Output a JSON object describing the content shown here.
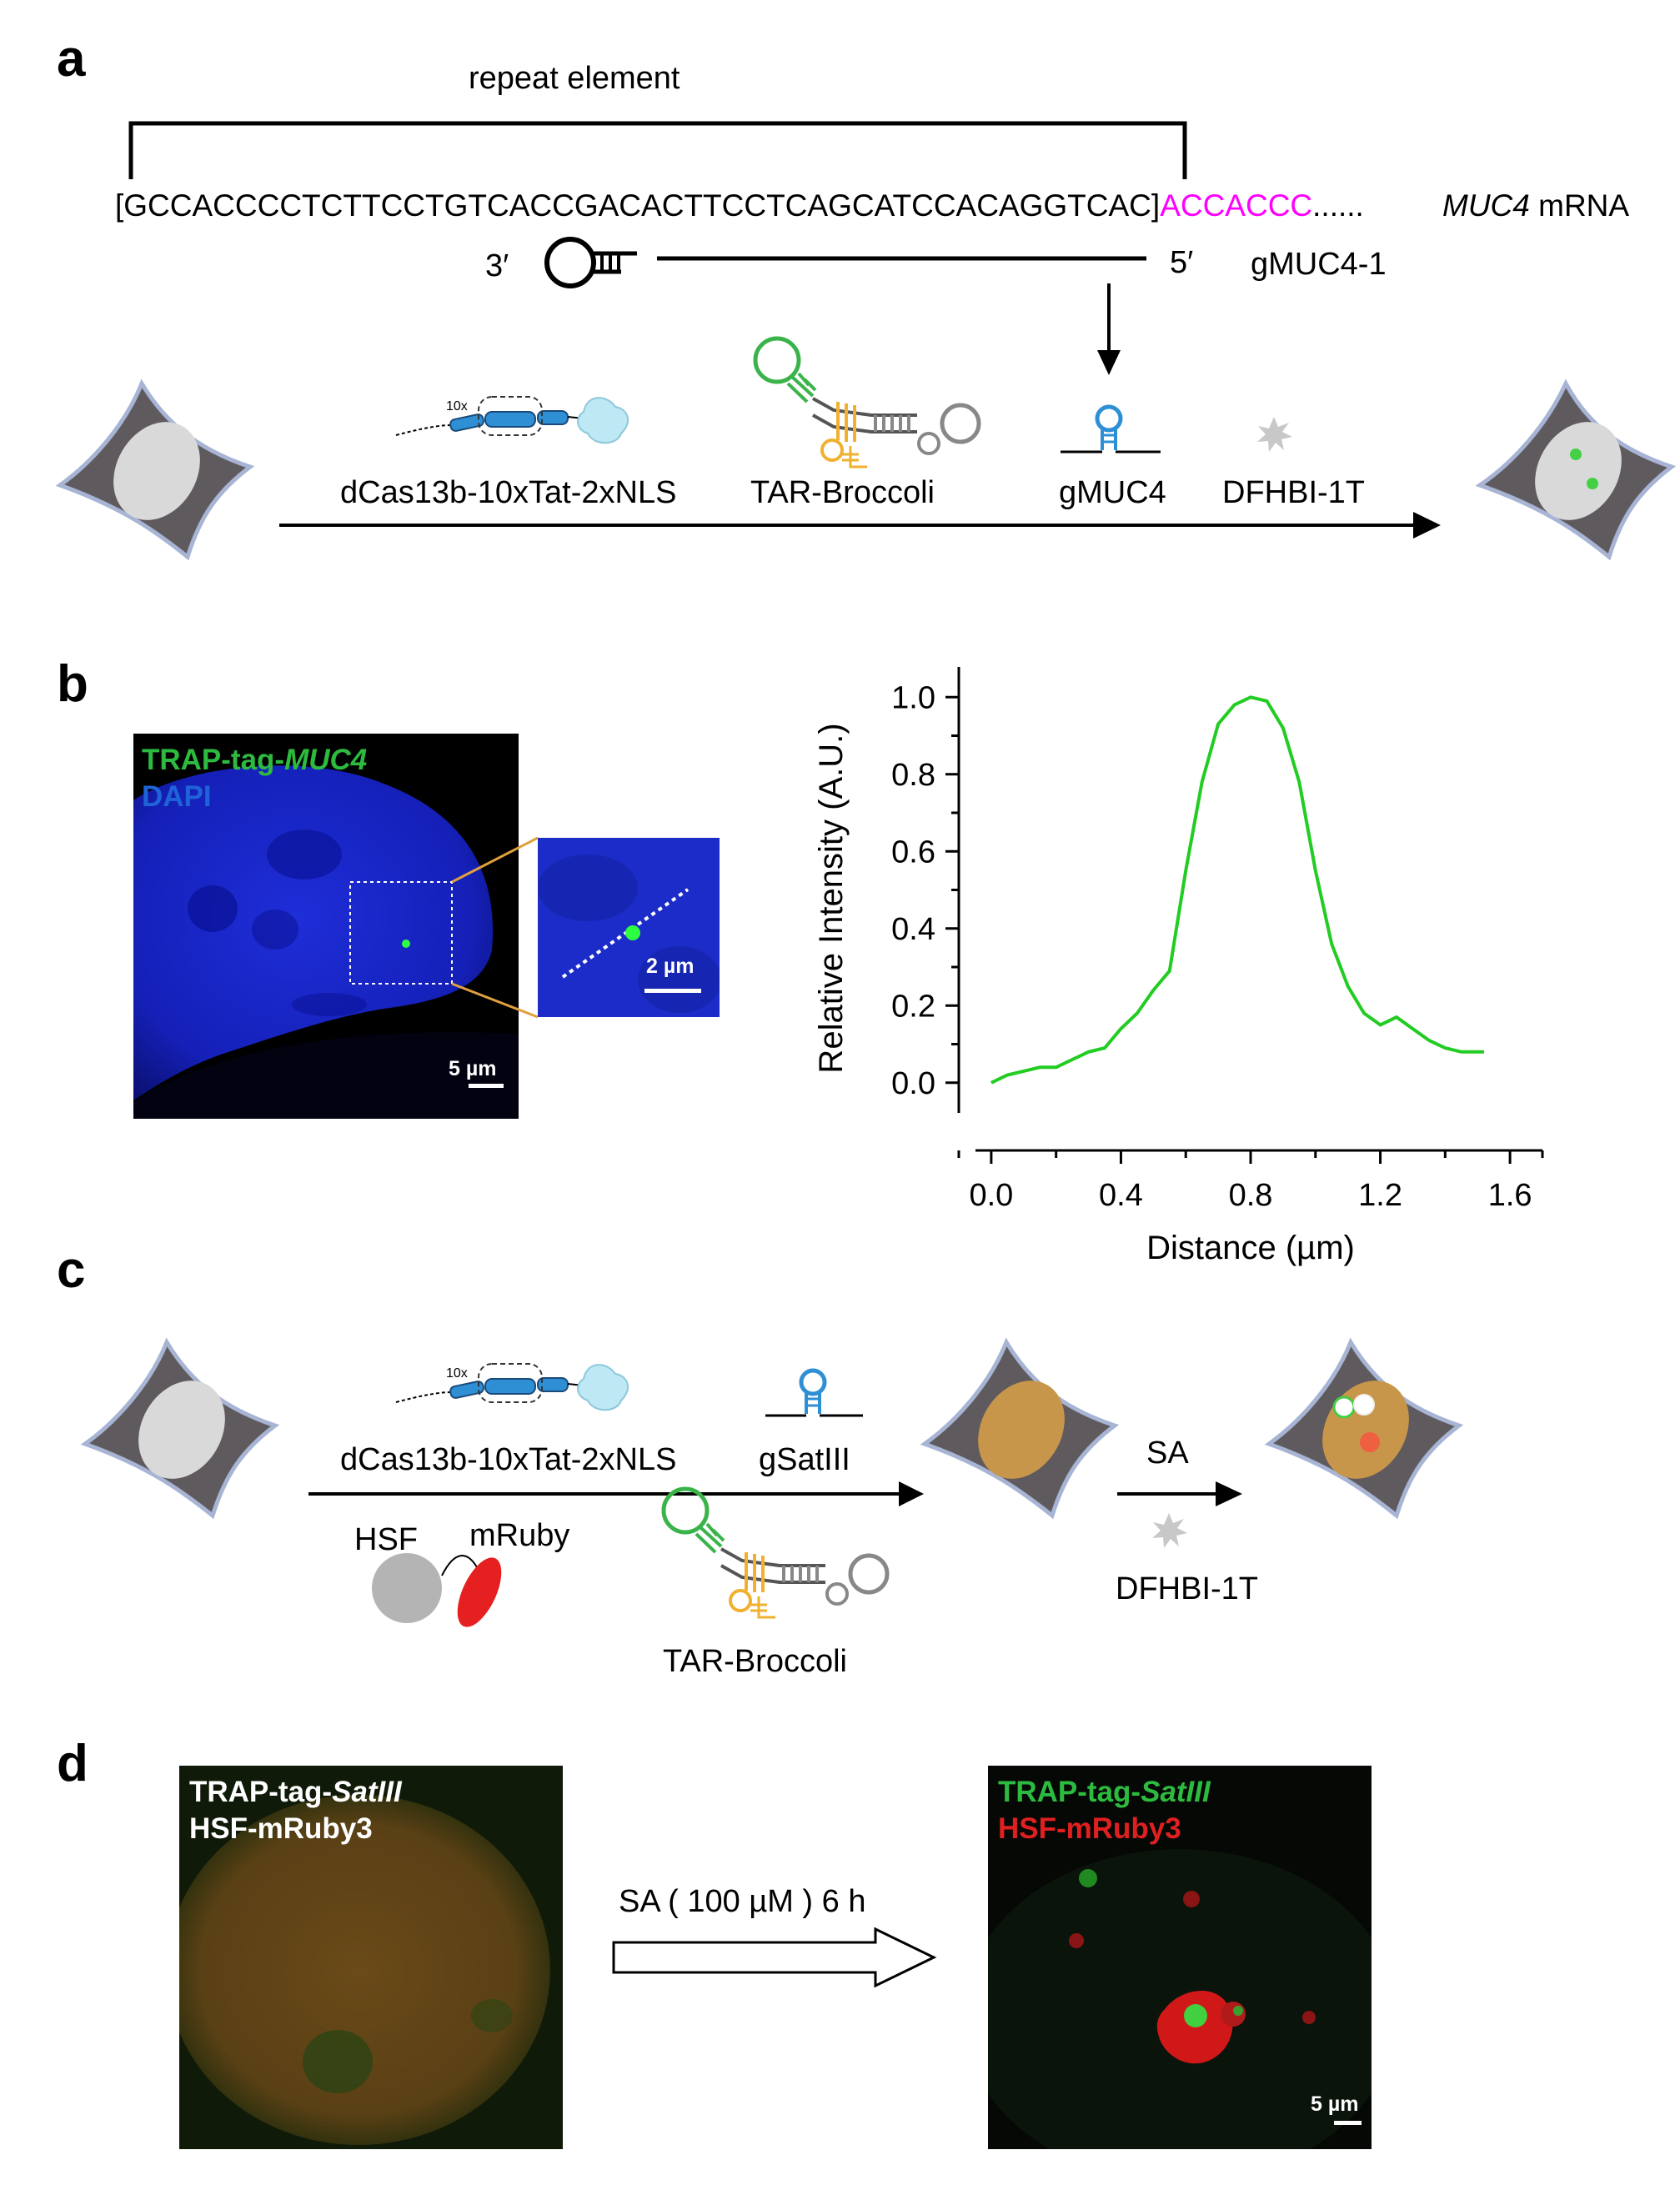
{
  "panel_a": {
    "label": "a",
    "repeat_label": "repeat element",
    "sequence_bracketed": "[GCCACCCCTCTTCCTGTCACCGACACTTCCTCAGCATCCACAGGTCAC]",
    "sequence_highlight": "ACCACCC",
    "sequence_ellipsis": "......",
    "mrna_gene": "MUC4",
    "mrna_suffix": " mRNA",
    "guide_3prime": "3′",
    "guide_5prime": "5′",
    "guide_name": "gMUC4-1",
    "components": {
      "dcas": "dCas13b-10xTat-2xNLS",
      "dcas_repeat": "10x",
      "tar": "TAR-Broccoli",
      "guide": "gMUC4",
      "dye": "DFHBI-1T"
    },
    "highlight_color": "#ff00ff"
  },
  "panel_b": {
    "label": "b",
    "image_label_green_prefix": "TRAP-tag-",
    "image_label_green_gene": "MUC4",
    "image_label_blue": "DAPI",
    "scale_main": "5 µm",
    "scale_inset": "2 µm",
    "chart_data": {
      "type": "line",
      "xlabel": "Distance (µm)",
      "ylabel": "Relative Intensity (A.U.)",
      "xlim": [
        -0.1,
        1.7
      ],
      "ylim": [
        -0.1,
        1.1
      ],
      "xticks": [
        0.0,
        0.4,
        0.8,
        1.2,
        1.6
      ],
      "yticks": [
        0.0,
        0.2,
        0.4,
        0.6,
        0.8,
        1.0
      ],
      "xtick_labels": [
        "0.0",
        "0.4",
        "0.8",
        "1.2",
        "1.6"
      ],
      "ytick_labels": [
        "0.0",
        "0.2",
        "0.4",
        "0.6",
        "0.8",
        "1.0"
      ],
      "series": [
        {
          "color": "#22cc22",
          "x": [
            0.0,
            0.05,
            0.1,
            0.15,
            0.2,
            0.25,
            0.3,
            0.35,
            0.4,
            0.45,
            0.5,
            0.55,
            0.6,
            0.65,
            0.7,
            0.75,
            0.8,
            0.85,
            0.9,
            0.95,
            1.0,
            1.05,
            1.1,
            1.15,
            1.2,
            1.25,
            1.3,
            1.35,
            1.4,
            1.45,
            1.5,
            1.52
          ],
          "y": [
            0.0,
            0.02,
            0.03,
            0.04,
            0.04,
            0.06,
            0.08,
            0.09,
            0.14,
            0.18,
            0.24,
            0.29,
            0.55,
            0.78,
            0.93,
            0.98,
            1.0,
            0.99,
            0.92,
            0.78,
            0.55,
            0.36,
            0.25,
            0.18,
            0.15,
            0.17,
            0.14,
            0.11,
            0.09,
            0.08,
            0.08,
            0.08
          ]
        }
      ]
    }
  },
  "panel_c": {
    "label": "c",
    "dcas": "dCas13b-10xTat-2xNLS",
    "dcas_repeat": "10x",
    "guide": "gSatIII",
    "hsf": "HSF",
    "mruby": "mRuby",
    "tar": "TAR-Broccoli",
    "treatment": "SA",
    "dye": "DFHBI-1T"
  },
  "panel_d": {
    "label": "d",
    "left_line1_prefix": "TRAP-tag-",
    "left_line1_gene": "SatIII",
    "left_line2": "HSF-mRuby3",
    "treatment": "SA ( 100 µM ) 6 h",
    "right_line1_prefix": "TRAP-tag-",
    "right_line1_gene": "SatIII",
    "right_line2": "HSF-mRuby3",
    "scale": "5 µm"
  }
}
